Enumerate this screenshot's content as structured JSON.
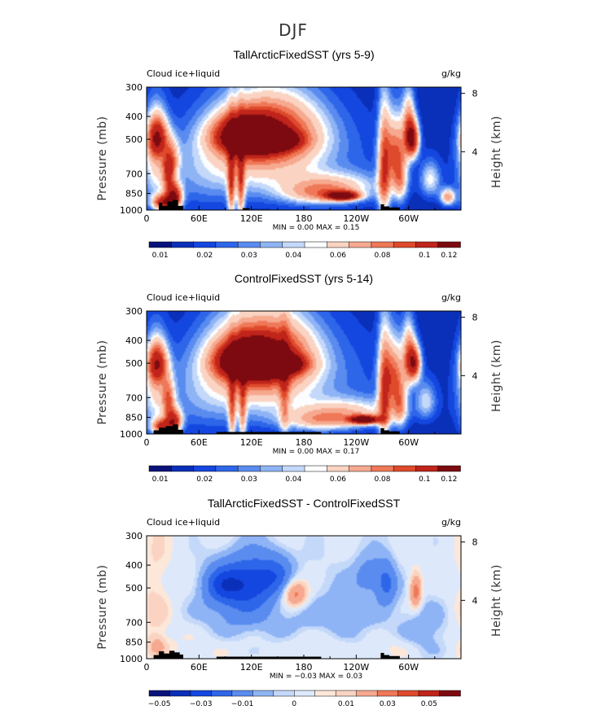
{
  "figure": {
    "suptitle": "DJF"
  },
  "colors": {
    "positive_scale": [
      "#08127a",
      "#0a2fb8",
      "#1446e0",
      "#2e66ea",
      "#5a8cf0",
      "#8fb4f5",
      "#c4d8fa",
      "#fbfdff",
      "#fad3c2",
      "#f6a98f",
      "#ef7858",
      "#de4a2b",
      "#c0241a",
      "#7d0a10"
    ],
    "diff_scale": [
      "#08127a",
      "#0a2fb8",
      "#1446e0",
      "#2e66ea",
      "#5a8cf0",
      "#8fb4f5",
      "#c4d8fa",
      "#dde9fb",
      "#fde7d9",
      "#fad3c2",
      "#f6a98f",
      "#ef7858",
      "#de4a2b",
      "#c0241a",
      "#7d0a10"
    ]
  },
  "chart_data": [
    {
      "type": "heatmap",
      "title": "TallArcticFixedSST (yrs 5-9)",
      "field_label": "Cloud ice+liquid",
      "units": "g/kg",
      "ylabel": "Pressure (mb)",
      "ylabel_right": "Height (km)",
      "x_ticks": [
        "0",
        "60E",
        "120E",
        "180",
        "120W",
        "60W"
      ],
      "x_tick_values": [
        0,
        60,
        120,
        180,
        240,
        300
      ],
      "xlim": [
        0,
        360
      ],
      "y_ticks": [
        "300",
        "400",
        "500",
        "700",
        "850",
        "1000"
      ],
      "y_tick_values": [
        300,
        400,
        500,
        700,
        850,
        1000
      ],
      "ylim": [
        1000,
        300
      ],
      "y_right_ticks": [
        "8",
        "4"
      ],
      "y_right_values": [
        8,
        4
      ],
      "min_max_text": "MIN =    0.00   MAX =    0.15",
      "colorbar_labels": [
        "0.01",
        "0.02",
        "0.03",
        "0.04",
        "0.06",
        "0.08",
        "0.1",
        "0.12"
      ],
      "blobs": [
        {
          "lon": 137,
          "p": 505,
          "v": 0.15,
          "sx": 20,
          "sy": 30
        },
        {
          "lon": 115,
          "p": 480,
          "v": 0.105,
          "sx": 24,
          "sy": 60
        },
        {
          "lon": 148,
          "p": 470,
          "v": 0.06,
          "sx": 38,
          "sy": 110
        },
        {
          "lon": 120,
          "p": 560,
          "v": 0.03,
          "sx": 45,
          "sy": 180
        },
        {
          "lon": 12,
          "p": 490,
          "v": 0.075,
          "sx": 8,
          "sy": 70
        },
        {
          "lon": 10,
          "p": 620,
          "v": 0.03,
          "sx": 10,
          "sy": 200
        },
        {
          "lon": 25,
          "p": 700,
          "v": 0.055,
          "sx": 5,
          "sy": 100
        },
        {
          "lon": 32,
          "p": 870,
          "v": 0.08,
          "sx": 6,
          "sy": 70
        },
        {
          "lon": 20,
          "p": 930,
          "v": 0.08,
          "sx": 9,
          "sy": 50
        },
        {
          "lon": 30,
          "p": 600,
          "v": 0.03,
          "sx": 6,
          "sy": 80
        },
        {
          "lon": 97,
          "p": 770,
          "v": 0.055,
          "sx": 3,
          "sy": 220
        },
        {
          "lon": 108,
          "p": 780,
          "v": 0.05,
          "sx": 3,
          "sy": 230
        },
        {
          "lon": 225,
          "p": 870,
          "v": 0.11,
          "sx": 12,
          "sy": 25
        },
        {
          "lon": 210,
          "p": 780,
          "v": 0.03,
          "sx": 40,
          "sy": 70
        },
        {
          "lon": 200,
          "p": 860,
          "v": 0.035,
          "sx": 30,
          "sy": 60
        },
        {
          "lon": 272,
          "p": 680,
          "v": 0.06,
          "sx": 5,
          "sy": 250
        },
        {
          "lon": 285,
          "p": 560,
          "v": 0.055,
          "sx": 8,
          "sy": 130
        },
        {
          "lon": 305,
          "p": 500,
          "v": 0.08,
          "sx": 5,
          "sy": 60
        },
        {
          "lon": 300,
          "p": 440,
          "v": 0.05,
          "sx": 5,
          "sy": 100
        },
        {
          "lon": 290,
          "p": 750,
          "v": 0.04,
          "sx": 6,
          "sy": 120
        },
        {
          "lon": 345,
          "p": 880,
          "v": 0.05,
          "sx": 6,
          "sy": 50
        },
        {
          "lon": 325,
          "p": 740,
          "v": 0.03,
          "sx": 8,
          "sy": 90
        },
        {
          "lon": 60,
          "p": 700,
          "v": 0.015,
          "sx": 40,
          "sy": 200
        },
        {
          "lon": 200,
          "p": 650,
          "v": 0.012,
          "sx": 70,
          "sy": 250
        }
      ],
      "bg": 0.004,
      "topo": [
        [
          14,
          930
        ],
        [
          18,
          930
        ],
        [
          18,
          960
        ],
        [
          24,
          960
        ],
        [
          24,
          920
        ],
        [
          30,
          920
        ],
        [
          30,
          905
        ],
        [
          36,
          905
        ],
        [
          36,
          960
        ],
        [
          42,
          960
        ],
        [
          42,
          1000
        ],
        [
          110,
          1000
        ],
        [
          110,
          980
        ],
        [
          118,
          980
        ],
        [
          118,
          1000
        ],
        [
          268,
          1000
        ],
        [
          268,
          945
        ],
        [
          272,
          945
        ],
        [
          272,
          965
        ],
        [
          278,
          965
        ],
        [
          278,
          975
        ],
        [
          290,
          975
        ],
        [
          290,
          1000
        ]
      ]
    },
    {
      "type": "heatmap",
      "title": "ControlFixedSST (yrs 5-14)",
      "field_label": "Cloud ice+liquid",
      "units": "g/kg",
      "ylabel": "Pressure (mb)",
      "ylabel_right": "Height (km)",
      "x_ticks": [
        "0",
        "60E",
        "120E",
        "180",
        "120W",
        "60W"
      ],
      "x_tick_values": [
        0,
        60,
        120,
        180,
        240,
        300
      ],
      "xlim": [
        0,
        360
      ],
      "y_ticks": [
        "300",
        "400",
        "500",
        "700",
        "850",
        "1000"
      ],
      "y_tick_values": [
        300,
        400,
        500,
        700,
        850,
        1000
      ],
      "ylim": [
        1000,
        300
      ],
      "y_right_ticks": [
        "8",
        "4"
      ],
      "y_right_values": [
        8,
        4
      ],
      "min_max_text": "MIN =    0.00   MAX =    0.17",
      "colorbar_labels": [
        "0.01",
        "0.02",
        "0.03",
        "0.04",
        "0.06",
        "0.08",
        "0.1",
        "0.12"
      ],
      "blobs": [
        {
          "lon": 143,
          "p": 505,
          "v": 0.17,
          "sx": 20,
          "sy": 30
        },
        {
          "lon": 118,
          "p": 490,
          "v": 0.13,
          "sx": 22,
          "sy": 55
        },
        {
          "lon": 135,
          "p": 460,
          "v": 0.07,
          "sx": 38,
          "sy": 110
        },
        {
          "lon": 128,
          "p": 560,
          "v": 0.035,
          "sx": 45,
          "sy": 180
        },
        {
          "lon": 12,
          "p": 500,
          "v": 0.07,
          "sx": 8,
          "sy": 70
        },
        {
          "lon": 10,
          "p": 640,
          "v": 0.03,
          "sx": 10,
          "sy": 200
        },
        {
          "lon": 25,
          "p": 720,
          "v": 0.05,
          "sx": 5,
          "sy": 100
        },
        {
          "lon": 32,
          "p": 880,
          "v": 0.07,
          "sx": 6,
          "sy": 70
        },
        {
          "lon": 18,
          "p": 930,
          "v": 0.07,
          "sx": 8,
          "sy": 50
        },
        {
          "lon": 98,
          "p": 800,
          "v": 0.045,
          "sx": 3,
          "sy": 220
        },
        {
          "lon": 110,
          "p": 800,
          "v": 0.04,
          "sx": 3,
          "sy": 230
        },
        {
          "lon": 158,
          "p": 680,
          "v": 0.03,
          "sx": 4,
          "sy": 250
        },
        {
          "lon": 250,
          "p": 870,
          "v": 0.11,
          "sx": 12,
          "sy": 25
        },
        {
          "lon": 230,
          "p": 800,
          "v": 0.03,
          "sx": 40,
          "sy": 70
        },
        {
          "lon": 200,
          "p": 880,
          "v": 0.035,
          "sx": 30,
          "sy": 60
        },
        {
          "lon": 272,
          "p": 680,
          "v": 0.055,
          "sx": 5,
          "sy": 250
        },
        {
          "lon": 283,
          "p": 560,
          "v": 0.055,
          "sx": 8,
          "sy": 130
        },
        {
          "lon": 307,
          "p": 500,
          "v": 0.075,
          "sx": 5,
          "sy": 60
        },
        {
          "lon": 300,
          "p": 460,
          "v": 0.05,
          "sx": 5,
          "sy": 100
        },
        {
          "lon": 290,
          "p": 760,
          "v": 0.04,
          "sx": 6,
          "sy": 120
        },
        {
          "lon": 320,
          "p": 720,
          "v": 0.025,
          "sx": 8,
          "sy": 90
        },
        {
          "lon": 60,
          "p": 700,
          "v": 0.015,
          "sx": 40,
          "sy": 200
        },
        {
          "lon": 210,
          "p": 650,
          "v": 0.012,
          "sx": 70,
          "sy": 250
        }
      ],
      "bg": 0.004,
      "topo": [
        [
          8,
          965
        ],
        [
          14,
          965
        ],
        [
          14,
          940
        ],
        [
          22,
          940
        ],
        [
          22,
          925
        ],
        [
          30,
          925
        ],
        [
          30,
          910
        ],
        [
          36,
          910
        ],
        [
          36,
          960
        ],
        [
          42,
          960
        ],
        [
          42,
          1000
        ],
        [
          80,
          1000
        ],
        [
          80,
          980
        ],
        [
          200,
          980
        ],
        [
          200,
          1000
        ],
        [
          268,
          1000
        ],
        [
          268,
          945
        ],
        [
          272,
          945
        ],
        [
          272,
          965
        ],
        [
          278,
          965
        ],
        [
          278,
          975
        ],
        [
          290,
          975
        ],
        [
          290,
          1000
        ]
      ]
    },
    {
      "type": "heatmap",
      "title": "TallArcticFixedSST - ControlFixedSST",
      "field_label": "Cloud ice+liquid",
      "units": "g/kg",
      "ylabel": "Pressure (mb)",
      "ylabel_right": "Height (km)",
      "x_ticks": [
        "0",
        "60E",
        "120E",
        "180",
        "120W",
        "60W"
      ],
      "x_tick_values": [
        0,
        60,
        120,
        180,
        240,
        300
      ],
      "xlim": [
        0,
        360
      ],
      "y_ticks": [
        "300",
        "400",
        "500",
        "700",
        "850",
        "1000"
      ],
      "y_tick_values": [
        300,
        400,
        500,
        700,
        850,
        1000
      ],
      "ylim": [
        1000,
        300
      ],
      "y_right_ticks": [
        "8",
        "4"
      ],
      "y_right_values": [
        8,
        4
      ],
      "min_max_text": "MIN =   −0.03   MAX =    0.03",
      "colorbar_labels": [
        "−0.05",
        "−0.03",
        "−0.01",
        "0",
        "0.01",
        "0.03",
        "0.05"
      ],
      "blobs": [
        {
          "lon": 120,
          "p": 470,
          "v": -0.028,
          "sx": 22,
          "sy": 80
        },
        {
          "lon": 85,
          "p": 480,
          "v": -0.02,
          "sx": 15,
          "sy": 60
        },
        {
          "lon": 150,
          "p": 430,
          "v": -0.015,
          "sx": 14,
          "sy": 60
        },
        {
          "lon": 103,
          "p": 560,
          "v": -0.012,
          "sx": 25,
          "sy": 120
        },
        {
          "lon": 170,
          "p": 530,
          "v": 0.028,
          "sx": 10,
          "sy": 50
        },
        {
          "lon": 275,
          "p": 480,
          "v": -0.02,
          "sx": 8,
          "sy": 70
        },
        {
          "lon": 255,
          "p": 440,
          "v": -0.012,
          "sx": 12,
          "sy": 60
        },
        {
          "lon": 308,
          "p": 520,
          "v": 0.028,
          "sx": 5,
          "sy": 60
        },
        {
          "lon": 120,
          "p": 720,
          "v": -0.007,
          "sx": 60,
          "sy": 150
        },
        {
          "lon": 230,
          "p": 680,
          "v": -0.007,
          "sx": 40,
          "sy": 200
        },
        {
          "lon": 320,
          "p": 760,
          "v": -0.009,
          "sx": 20,
          "sy": 150
        },
        {
          "lon": 10,
          "p": 600,
          "v": 0.007,
          "sx": 14,
          "sy": 250
        },
        {
          "lon": 12,
          "p": 880,
          "v": 0.01,
          "sx": 6,
          "sy": 50
        },
        {
          "lon": 200,
          "p": 850,
          "v": 0.006,
          "sx": 30,
          "sy": 80
        },
        {
          "lon": 70,
          "p": 850,
          "v": 0.004,
          "sx": 60,
          "sy": 120
        },
        {
          "lon": 280,
          "p": 900,
          "v": 0.005,
          "sx": 20,
          "sy": 80
        }
      ],
      "bg": 0.0025,
      "topo": [
        [
          8,
          965
        ],
        [
          14,
          965
        ],
        [
          14,
          930
        ],
        [
          20,
          930
        ],
        [
          20,
          950
        ],
        [
          26,
          950
        ],
        [
          26,
          925
        ],
        [
          32,
          925
        ],
        [
          32,
          940
        ],
        [
          38,
          940
        ],
        [
          38,
          960
        ],
        [
          42,
          960
        ],
        [
          42,
          1000
        ],
        [
          80,
          1000
        ],
        [
          80,
          980
        ],
        [
          200,
          980
        ],
        [
          200,
          1000
        ],
        [
          268,
          1000
        ],
        [
          268,
          945
        ],
        [
          272,
          945
        ],
        [
          272,
          965
        ],
        [
          278,
          965
        ],
        [
          278,
          975
        ],
        [
          290,
          975
        ],
        [
          290,
          1000
        ]
      ]
    }
  ]
}
